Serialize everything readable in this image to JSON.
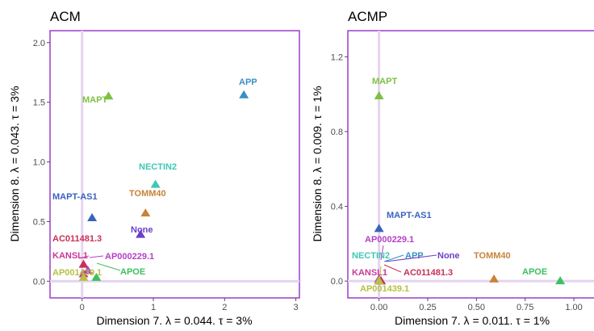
{
  "chart_data": [
    {
      "type": "scatter",
      "title": "ACM",
      "xlabel": "Dimension 7.   λ = 0.044.   τ = 3%",
      "ylabel": "Dimension 8.   λ = 0.043.   τ = 3%",
      "xlim": [
        -0.45,
        3.05
      ],
      "ylim": [
        -0.14,
        2.1
      ],
      "xticks": [
        0,
        1,
        2,
        3
      ],
      "xtick_labels": [
        "0",
        "1",
        "2",
        "3"
      ],
      "yticks": [
        0.0,
        0.5,
        1.0,
        1.5,
        2.0
      ],
      "ytick_labels": [
        "0.0",
        "0.5",
        "1.0",
        "1.5",
        "2.0"
      ],
      "grid": false,
      "points": [
        {
          "label": "APP",
          "x": 2.27,
          "y": 1.56,
          "color": "#3a8fc4"
        },
        {
          "label": "MAPT",
          "x": 0.37,
          "y": 1.55,
          "color": "#7cc142"
        },
        {
          "label": "NECTIN2",
          "x": 1.03,
          "y": 0.81,
          "color": "#3fc8b4"
        },
        {
          "label": "TOMM40",
          "x": 0.89,
          "y": 0.57,
          "color": "#c8833a"
        },
        {
          "label": "MAPT-AS1",
          "x": 0.14,
          "y": 0.53,
          "color": "#3a62c0"
        },
        {
          "label": "None",
          "x": 0.82,
          "y": 0.39,
          "color": "#6a3fc8"
        },
        {
          "label": "AC011481.3",
          "x": 0.02,
          "y": 0.14,
          "color": "#c8305a"
        },
        {
          "label": "AP000229.1",
          "x": 0.08,
          "y": 0.09,
          "color": "#b53fc8"
        },
        {
          "label": "KANSL1",
          "x": 0.02,
          "y": 0.06,
          "color": "#c83a9a"
        },
        {
          "label": "APOE",
          "x": 0.2,
          "y": 0.03,
          "color": "#3cc060"
        },
        {
          "label": "AP001439.1",
          "x": 0.02,
          "y": 0.03,
          "color": "#b8c040"
        }
      ]
    },
    {
      "type": "scatter",
      "title": "ACMP",
      "xlabel": "Dimension 7.   λ = 0.011.   τ = 1%",
      "ylabel": "Dimension 8.   λ = 0.009.   τ = 1%",
      "xlim": [
        -0.16,
        1.12
      ],
      "ylim": [
        -0.09,
        1.34
      ],
      "xticks": [
        0,
        0.25,
        0.5,
        0.75,
        1.0
      ],
      "xtick_labels": [
        "0.00",
        "0.25",
        "0.50",
        "0.75",
        "1.00"
      ],
      "yticks": [
        0.0,
        0.4,
        0.8,
        1.2
      ],
      "ytick_labels": [
        "0.0",
        "0.4",
        "0.8",
        "1.2"
      ],
      "grid": false,
      "points": [
        {
          "label": "MAPT",
          "x": 0.0,
          "y": 0.99,
          "color": "#7cc142"
        },
        {
          "label": "MAPT-AS1",
          "x": 0.0,
          "y": 0.28,
          "color": "#3a62c0"
        },
        {
          "label": "AP000229.1",
          "x": 0.0,
          "y": 0.01,
          "color": "#b53fc8"
        },
        {
          "label": "NECTIN2",
          "x": 0.0,
          "y": 0.0,
          "color": "#3fc8b4"
        },
        {
          "label": "APP",
          "x": 0.01,
          "y": 0.0,
          "color": "#3a8fc4"
        },
        {
          "label": "None",
          "x": 0.01,
          "y": 0.0,
          "color": "#6a3fc8"
        },
        {
          "label": "TOMM40",
          "x": 0.59,
          "y": 0.01,
          "color": "#c8833a"
        },
        {
          "label": "APOE",
          "x": 0.93,
          "y": 0.0,
          "color": "#3cc060"
        },
        {
          "label": "KANSL1",
          "x": 0.0,
          "y": 0.0,
          "color": "#c83a9a"
        },
        {
          "label": "AC011481.3",
          "x": 0.01,
          "y": 0.0,
          "color": "#c8305a"
        },
        {
          "label": "AP001439.1",
          "x": 0.0,
          "y": 0.0,
          "color": "#b8c040"
        }
      ]
    }
  ],
  "style": {
    "panel_border": "#9b3fc8",
    "zero_line": "#e6d4f0",
    "tick_color": "#4d4d4d"
  }
}
